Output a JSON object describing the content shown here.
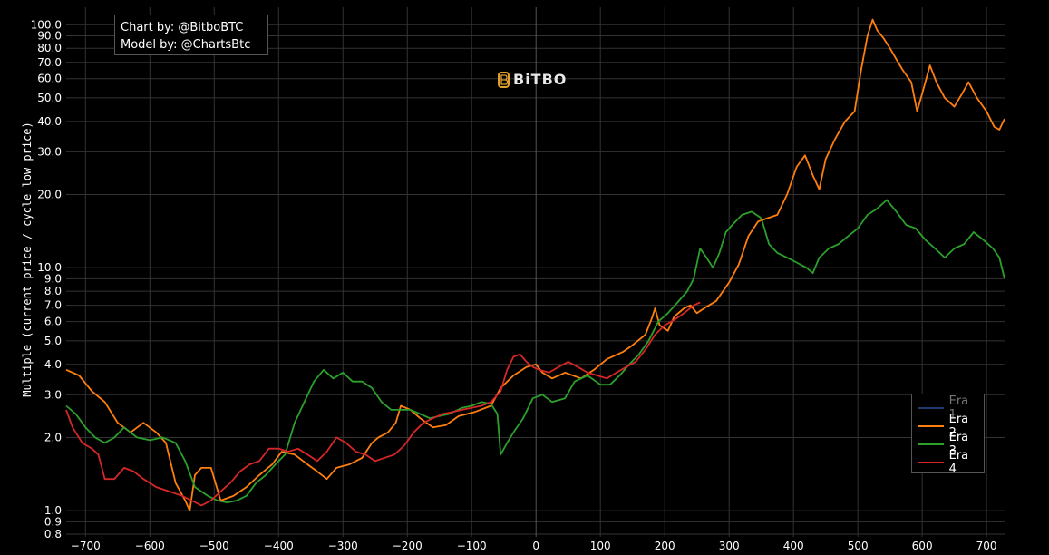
{
  "credits": {
    "chart_by": "Chart by: @BitboBTC",
    "model_by": "Model by: @ChartsBtc"
  },
  "logo": {
    "text": "BiTBO"
  },
  "chart_data": {
    "type": "line",
    "ylabel": "Multiple (current price / cycle low price)",
    "xlabel": "",
    "y_scale": "log",
    "grid": true,
    "xlim": [
      -730,
      728
    ],
    "ylim": [
      0.78,
      118
    ],
    "x_ticks": [
      -700,
      -600,
      -500,
      -400,
      -300,
      -200,
      -100,
      0,
      100,
      200,
      300,
      400,
      500,
      600,
      700
    ],
    "y_ticks": [
      0.8,
      0.9,
      1.0,
      2.0,
      3.0,
      4.0,
      5.0,
      6.0,
      7.0,
      8.0,
      9.0,
      10.0,
      20.0,
      30.0,
      40.0,
      50.0,
      60.0,
      70.0,
      80.0,
      90.0,
      100.0
    ],
    "y_tick_labels": [
      "0.8",
      "0.9",
      "1.0",
      "2.0",
      "3.0",
      "4.0",
      "5.0",
      "6.0",
      "7.0",
      "8.0",
      "9.0",
      "10.0",
      "20.0",
      "30.0",
      "40.0",
      "50.0",
      "60.0",
      "70.0",
      "80.0",
      "90.0",
      "100.0"
    ],
    "legend_position": "bottom-right",
    "series": [
      {
        "name": "Era 1",
        "color": "#1f3a6e",
        "dimmed": true,
        "points": []
      },
      {
        "name": "Era 2",
        "color": "#ff7f0e",
        "points": [
          [
            -730,
            3.8
          ],
          [
            -710,
            3.6
          ],
          [
            -690,
            3.1
          ],
          [
            -670,
            2.8
          ],
          [
            -650,
            2.3
          ],
          [
            -630,
            2.1
          ],
          [
            -610,
            2.3
          ],
          [
            -590,
            2.1
          ],
          [
            -575,
            1.9
          ],
          [
            -560,
            1.3
          ],
          [
            -545,
            1.1
          ],
          [
            -538,
            1.0
          ],
          [
            -530,
            1.4
          ],
          [
            -520,
            1.5
          ],
          [
            -505,
            1.5
          ],
          [
            -490,
            1.1
          ],
          [
            -470,
            1.15
          ],
          [
            -450,
            1.25
          ],
          [
            -430,
            1.4
          ],
          [
            -410,
            1.55
          ],
          [
            -395,
            1.75
          ],
          [
            -375,
            1.7
          ],
          [
            -355,
            1.55
          ],
          [
            -340,
            1.45
          ],
          [
            -325,
            1.35
          ],
          [
            -310,
            1.5
          ],
          [
            -290,
            1.55
          ],
          [
            -270,
            1.65
          ],
          [
            -255,
            1.9
          ],
          [
            -245,
            2.0
          ],
          [
            -230,
            2.1
          ],
          [
            -218,
            2.3
          ],
          [
            -210,
            2.7
          ],
          [
            -195,
            2.6
          ],
          [
            -180,
            2.4
          ],
          [
            -160,
            2.2
          ],
          [
            -140,
            2.25
          ],
          [
            -120,
            2.45
          ],
          [
            -95,
            2.55
          ],
          [
            -70,
            2.7
          ],
          [
            -55,
            3.2
          ],
          [
            -35,
            3.6
          ],
          [
            -15,
            3.9
          ],
          [
            0,
            4.0
          ],
          [
            10,
            3.7
          ],
          [
            25,
            3.5
          ],
          [
            45,
            3.7
          ],
          [
            70,
            3.5
          ],
          [
            90,
            3.8
          ],
          [
            110,
            4.2
          ],
          [
            135,
            4.5
          ],
          [
            150,
            4.8
          ],
          [
            170,
            5.3
          ],
          [
            180,
            6.2
          ],
          [
            185,
            6.8
          ],
          [
            192,
            5.8
          ],
          [
            205,
            5.5
          ],
          [
            215,
            6.3
          ],
          [
            230,
            6.8
          ],
          [
            240,
            7.0
          ],
          [
            250,
            6.5
          ],
          [
            265,
            6.9
          ],
          [
            280,
            7.3
          ],
          [
            300,
            8.7
          ],
          [
            315,
            10.3
          ],
          [
            330,
            13.5
          ],
          [
            345,
            15.5
          ],
          [
            360,
            16.0
          ],
          [
            375,
            16.5
          ],
          [
            390,
            20.0
          ],
          [
            405,
            26.0
          ],
          [
            418,
            29.0
          ],
          [
            430,
            24.0
          ],
          [
            440,
            21.0
          ],
          [
            450,
            28.0
          ],
          [
            465,
            34.0
          ],
          [
            480,
            40.0
          ],
          [
            495,
            44.0
          ],
          [
            505,
            65.0
          ],
          [
            515,
            90.0
          ],
          [
            523,
            105.0
          ],
          [
            530,
            95.0
          ],
          [
            540,
            88.0
          ],
          [
            550,
            80.0
          ],
          [
            560,
            72.0
          ],
          [
            570,
            65.0
          ],
          [
            583,
            58.0
          ],
          [
            592,
            44.0
          ],
          [
            600,
            52.0
          ],
          [
            612,
            68.0
          ],
          [
            622,
            58.0
          ],
          [
            635,
            50.0
          ],
          [
            650,
            46.0
          ],
          [
            662,
            52.0
          ],
          [
            672,
            58.0
          ],
          [
            685,
            50.0
          ],
          [
            700,
            44.0
          ],
          [
            712,
            38.0
          ],
          [
            720,
            37.0
          ],
          [
            728,
            41.0
          ]
        ]
      },
      {
        "name": "Era 3",
        "color": "#2ca02c",
        "points": [
          [
            -730,
            2.7
          ],
          [
            -715,
            2.5
          ],
          [
            -700,
            2.2
          ],
          [
            -685,
            2.0
          ],
          [
            -670,
            1.9
          ],
          [
            -655,
            2.0
          ],
          [
            -640,
            2.2
          ],
          [
            -620,
            2.0
          ],
          [
            -600,
            1.95
          ],
          [
            -580,
            2.0
          ],
          [
            -560,
            1.9
          ],
          [
            -545,
            1.6
          ],
          [
            -530,
            1.25
          ],
          [
            -510,
            1.15
          ],
          [
            -495,
            1.1
          ],
          [
            -480,
            1.08
          ],
          [
            -465,
            1.1
          ],
          [
            -450,
            1.15
          ],
          [
            -435,
            1.3
          ],
          [
            -420,
            1.4
          ],
          [
            -405,
            1.55
          ],
          [
            -390,
            1.7
          ],
          [
            -375,
            2.3
          ],
          [
            -360,
            2.8
          ],
          [
            -345,
            3.4
          ],
          [
            -330,
            3.8
          ],
          [
            -315,
            3.5
          ],
          [
            -300,
            3.7
          ],
          [
            -285,
            3.4
          ],
          [
            -270,
            3.4
          ],
          [
            -255,
            3.2
          ],
          [
            -240,
            2.8
          ],
          [
            -225,
            2.6
          ],
          [
            -210,
            2.6
          ],
          [
            -195,
            2.6
          ],
          [
            -180,
            2.5
          ],
          [
            -165,
            2.4
          ],
          [
            -150,
            2.45
          ],
          [
            -135,
            2.5
          ],
          [
            -115,
            2.65
          ],
          [
            -100,
            2.7
          ],
          [
            -85,
            2.8
          ],
          [
            -70,
            2.75
          ],
          [
            -60,
            2.5
          ],
          [
            -55,
            1.7
          ],
          [
            -45,
            1.9
          ],
          [
            -35,
            2.1
          ],
          [
            -20,
            2.4
          ],
          [
            -5,
            2.9
          ],
          [
            10,
            3.0
          ],
          [
            25,
            2.8
          ],
          [
            45,
            2.9
          ],
          [
            60,
            3.4
          ],
          [
            80,
            3.6
          ],
          [
            100,
            3.3
          ],
          [
            115,
            3.3
          ],
          [
            130,
            3.6
          ],
          [
            145,
            4.0
          ],
          [
            160,
            4.4
          ],
          [
            175,
            5.0
          ],
          [
            190,
            6.0
          ],
          [
            205,
            6.5
          ],
          [
            220,
            7.2
          ],
          [
            235,
            8.0
          ],
          [
            245,
            9.0
          ],
          [
            255,
            12.0
          ],
          [
            265,
            11.0
          ],
          [
            275,
            10.0
          ],
          [
            285,
            11.5
          ],
          [
            295,
            14.0
          ],
          [
            305,
            15.0
          ],
          [
            320,
            16.5
          ],
          [
            335,
            17.0
          ],
          [
            350,
            16.0
          ],
          [
            362,
            12.5
          ],
          [
            375,
            11.5
          ],
          [
            390,
            11.0
          ],
          [
            405,
            10.5
          ],
          [
            420,
            10.0
          ],
          [
            430,
            9.5
          ],
          [
            440,
            11.0
          ],
          [
            455,
            12.0
          ],
          [
            470,
            12.5
          ],
          [
            485,
            13.5
          ],
          [
            500,
            14.5
          ],
          [
            515,
            16.5
          ],
          [
            530,
            17.5
          ],
          [
            545,
            19.0
          ],
          [
            560,
            17.0
          ],
          [
            575,
            15.0
          ],
          [
            590,
            14.5
          ],
          [
            605,
            13.0
          ],
          [
            620,
            12.0
          ],
          [
            635,
            11.0
          ],
          [
            650,
            12.0
          ],
          [
            665,
            12.5
          ],
          [
            680,
            14.0
          ],
          [
            695,
            13.0
          ],
          [
            710,
            12.0
          ],
          [
            720,
            11.0
          ],
          [
            728,
            9.0
          ]
        ]
      },
      {
        "name": "Era 4",
        "color": "#d62728",
        "points": [
          [
            -730,
            2.6
          ],
          [
            -720,
            2.2
          ],
          [
            -705,
            1.9
          ],
          [
            -690,
            1.8
          ],
          [
            -680,
            1.7
          ],
          [
            -670,
            1.35
          ],
          [
            -655,
            1.35
          ],
          [
            -640,
            1.5
          ],
          [
            -625,
            1.45
          ],
          [
            -610,
            1.35
          ],
          [
            -590,
            1.25
          ],
          [
            -570,
            1.2
          ],
          [
            -550,
            1.15
          ],
          [
            -535,
            1.1
          ],
          [
            -520,
            1.05
          ],
          [
            -505,
            1.1
          ],
          [
            -490,
            1.2
          ],
          [
            -475,
            1.3
          ],
          [
            -460,
            1.45
          ],
          [
            -445,
            1.55
          ],
          [
            -430,
            1.6
          ],
          [
            -415,
            1.8
          ],
          [
            -400,
            1.8
          ],
          [
            -385,
            1.75
          ],
          [
            -370,
            1.8
          ],
          [
            -355,
            1.7
          ],
          [
            -340,
            1.6
          ],
          [
            -325,
            1.75
          ],
          [
            -310,
            2.0
          ],
          [
            -295,
            1.9
          ],
          [
            -280,
            1.75
          ],
          [
            -265,
            1.7
          ],
          [
            -250,
            1.6
          ],
          [
            -235,
            1.65
          ],
          [
            -220,
            1.7
          ],
          [
            -205,
            1.85
          ],
          [
            -190,
            2.1
          ],
          [
            -175,
            2.3
          ],
          [
            -160,
            2.4
          ],
          [
            -145,
            2.5
          ],
          [
            -130,
            2.55
          ],
          [
            -115,
            2.6
          ],
          [
            -100,
            2.65
          ],
          [
            -85,
            2.7
          ],
          [
            -70,
            2.8
          ],
          [
            -55,
            3.1
          ],
          [
            -45,
            3.8
          ],
          [
            -35,
            4.3
          ],
          [
            -25,
            4.4
          ],
          [
            -15,
            4.1
          ],
          [
            -5,
            3.9
          ],
          [
            5,
            3.8
          ],
          [
            20,
            3.7
          ],
          [
            35,
            3.9
          ],
          [
            50,
            4.1
          ],
          [
            65,
            3.9
          ],
          [
            80,
            3.7
          ],
          [
            95,
            3.6
          ],
          [
            110,
            3.5
          ],
          [
            125,
            3.7
          ],
          [
            140,
            3.9
          ],
          [
            155,
            4.1
          ],
          [
            170,
            4.6
          ],
          [
            185,
            5.3
          ],
          [
            200,
            5.8
          ],
          [
            215,
            6.1
          ],
          [
            230,
            6.5
          ],
          [
            245,
            7.0
          ],
          [
            255,
            7.2
          ]
        ]
      }
    ]
  }
}
